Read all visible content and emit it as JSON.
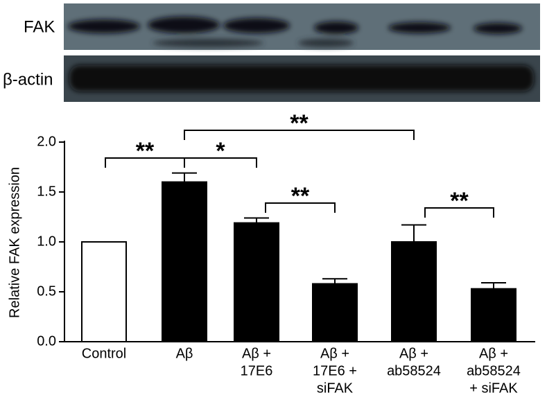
{
  "blot": {
    "labels": [
      "FAK",
      "β-actin"
    ]
  },
  "chart_data": {
    "type": "bar",
    "ylabel": "Relative FAK expression",
    "categories": [
      [
        "Control"
      ],
      [
        "Aβ"
      ],
      [
        "Aβ +",
        "17E6"
      ],
      [
        "Aβ +",
        "17E6 +",
        "siFAK"
      ],
      [
        "Aβ +",
        "ab58524"
      ],
      [
        "Aβ +",
        "ab58524",
        "+ siFAK"
      ]
    ],
    "values": [
      1.0,
      1.6,
      1.19,
      0.58,
      1.0,
      0.53
    ],
    "errors": [
      null,
      0.09,
      0.05,
      0.05,
      0.17,
      0.06
    ],
    "colors": [
      "#ffffff",
      "#000000",
      "#000000",
      "#000000",
      "#000000",
      "#000000"
    ],
    "ylim": [
      0,
      2.0
    ],
    "yticks": [
      {
        "value": 0,
        "label": "0.0"
      },
      0.5,
      {
        "value": 1,
        "label": "1.0"
      },
      1.5,
      {
        "value": 2,
        "label": "2.0"
      }
    ],
    "annotations": [
      "**",
      "*",
      "**",
      "**",
      "**"
    ]
  }
}
